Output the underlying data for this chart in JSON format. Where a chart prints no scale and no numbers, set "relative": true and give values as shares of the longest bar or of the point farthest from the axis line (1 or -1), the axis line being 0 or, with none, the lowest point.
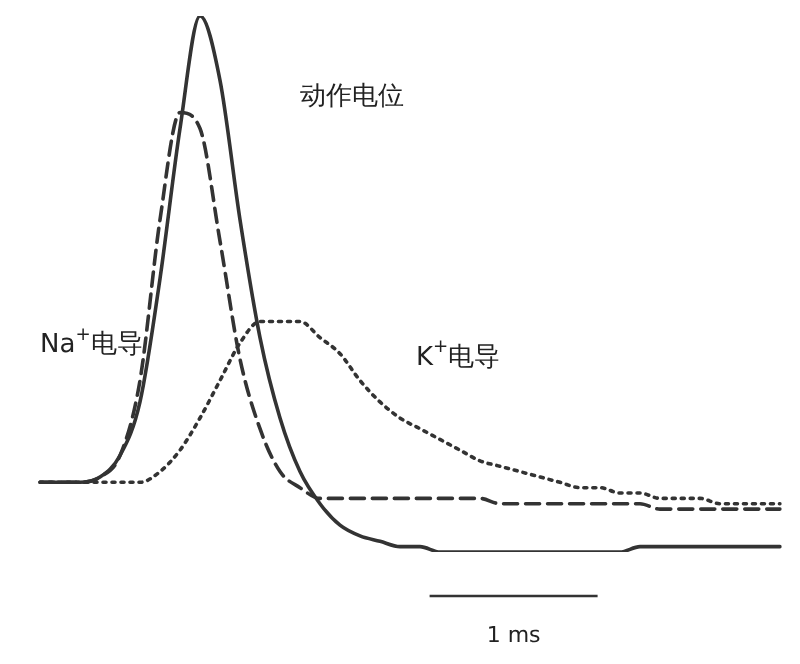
{
  "chart_data": {
    "type": "line",
    "relative": true,
    "legend": false,
    "marker": "none",
    "categories": [
      null,
      null,
      null,
      null,
      null,
      null,
      null,
      null,
      null,
      null,
      null,
      null,
      null,
      null,
      null,
      null,
      null,
      null,
      null,
      null,
      null,
      null,
      null,
      null,
      null,
      null,
      null,
      null,
      null,
      null,
      null,
      null,
      null,
      null,
      null,
      null,
      null,
      null
    ],
    "series": [
      {
        "name": "动作电位",
        "color": "#333333",
        "line_style": "solid",
        "values": [
          0.13,
          0.13,
          0.13,
          0.14,
          0.18,
          0.28,
          0.51,
          0.79,
          1,
          0.88,
          0.62,
          0.4,
          0.25,
          0.15,
          0.09,
          0.05,
          0.03,
          0.02,
          0.01,
          0.01,
          0,
          0,
          0,
          0,
          0,
          0,
          0,
          0,
          0,
          0,
          0.01,
          0.01,
          0.01,
          0.01,
          0.01,
          0.01,
          0.01,
          0.01
        ]
      },
      {
        "name": "Na$^{+}$电导",
        "color": "#333333",
        "line_style": "dashed",
        "values": [
          0.13,
          0.13,
          0.13,
          0.14,
          0.18,
          0.32,
          0.62,
          0.82,
          0.79,
          0.58,
          0.36,
          0.23,
          0.15,
          0.12,
          0.1,
          0.1,
          0.1,
          0.1,
          0.1,
          0.1,
          0.1,
          0.1,
          0.1,
          0.09,
          0.09,
          0.09,
          0.09,
          0.09,
          0.09,
          0.09,
          0.09,
          0.08,
          0.08,
          0.08,
          0.08,
          0.08,
          0.08,
          0.08
        ]
      },
      {
        "name": "K$^{+}$电导",
        "color": "#333333",
        "line_style": "dotted",
        "values": [
          0.13,
          0.13,
          0.13,
          0.13,
          0.13,
          0.13,
          0.15,
          0.19,
          0.25,
          0.32,
          0.39,
          0.43,
          0.43,
          0.43,
          0.4,
          0.37,
          0.32,
          0.28,
          0.25,
          0.23,
          0.21,
          0.19,
          0.17,
          0.16,
          0.15,
          0.14,
          0.13,
          0.12,
          0.12,
          0.11,
          0.11,
          0.1,
          0.1,
          0.1,
          0.09,
          0.09,
          0.09,
          0.09
        ]
      }
    ],
    "annotations": [
      "1 ms"
    ]
  }
}
